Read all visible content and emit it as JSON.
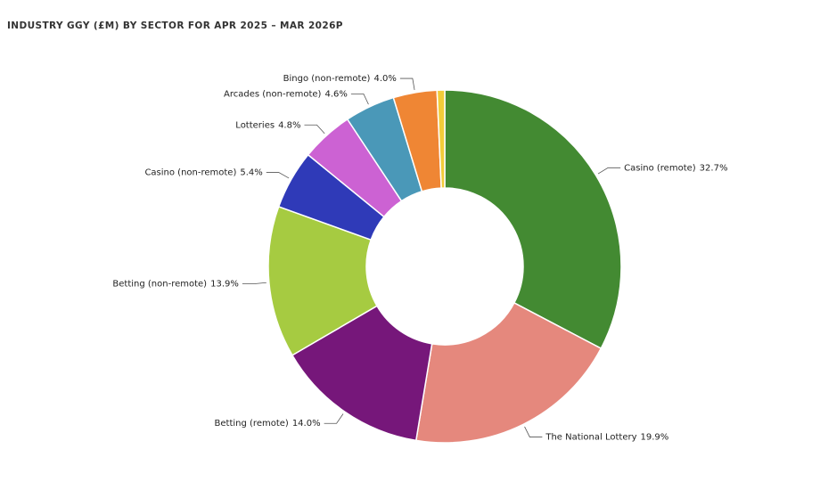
{
  "chart_data": {
    "type": "donut",
    "title": "INDUSTRY GGY (£M) BY SECTOR FOR APR 2025 – MAR 2026P",
    "categories": [
      "Casino (remote)",
      "The National Lottery",
      "Betting (remote)",
      "Betting (non-remote)",
      "Casino (non-remote)",
      "Lotteries",
      "Arcades (non-remote)",
      "Bingo (non-remote)",
      null
    ],
    "values": [
      32.7,
      19.9,
      14.0,
      13.9,
      5.4,
      4.8,
      4.6,
      4.0,
      0.7
    ],
    "value_labels": [
      "32.7%",
      "19.9%",
      "14.0%",
      "13.9%",
      "5.4%",
      "4.8%",
      "4.6%",
      "4.0%",
      null
    ],
    "colors": [
      "#438a32",
      "#e5887d",
      "#76177a",
      "#a6cb41",
      "#2f3ab8",
      "#cc62d3",
      "#4a98b8",
      "#ef8634",
      "#f2cc3a"
    ]
  }
}
